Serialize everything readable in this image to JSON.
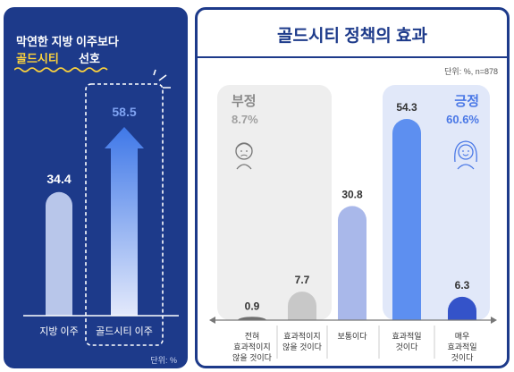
{
  "colors": {
    "navy": "#1d3a8a",
    "yellow": "#ffd43b",
    "gray_bar": "#c8c8c8",
    "dark_gray_bar": "#707070",
    "light_blue_bar": "#a9b8ea",
    "blue_bar": "#5d8ff0",
    "dark_blue_bar": "#3453c9",
    "negative_bg": "#eeeeee",
    "positive_bg": "#e1e8f9"
  },
  "left": {
    "title_line1": "막연한 지방 이주보다",
    "title_highlight": "골드시티",
    "title_rest": "선호",
    "unit": "단위: %"
  },
  "right": {
    "title": "골드시티 정책의 효과",
    "unit": "단위: %, n=878",
    "negative": {
      "label": "부정",
      "value": "8.7%"
    },
    "positive": {
      "label": "긍정",
      "value": "60.6%"
    }
  },
  "chart_data": [
    {
      "type": "bar",
      "categories": [
        "지방 이주",
        "골드시티 이주"
      ],
      "values": [
        34.4,
        58.5
      ],
      "unit": "%"
    },
    {
      "type": "bar",
      "categories": [
        "전혀 효과적이지 않을 것이다",
        "효과적이지 않을 것이다",
        "보통이다",
        "효과적일 것이다",
        "매우 효과적일 것이다"
      ],
      "category_lines": [
        [
          "전혀",
          "효과적이지",
          "않을 것이다"
        ],
        [
          "효과적이지",
          "않을 것이다"
        ],
        [
          "보통이다"
        ],
        [
          "효과적일",
          "것이다"
        ],
        [
          "매우",
          "효과적일",
          "것이다"
        ]
      ],
      "values": [
        0.9,
        7.7,
        30.8,
        54.3,
        6.3
      ],
      "groups": [
        {
          "label": "부정",
          "value": 8.7
        },
        {
          "label": "긍정",
          "value": 60.6
        }
      ],
      "unit": "%",
      "n": 878
    }
  ]
}
